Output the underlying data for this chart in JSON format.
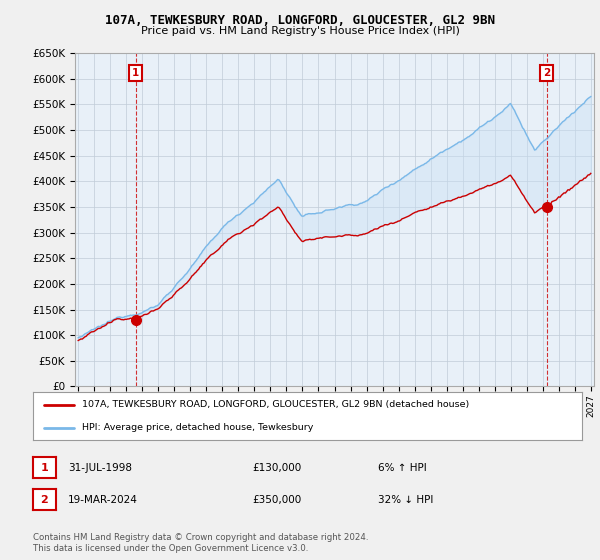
{
  "title_line1": "107A, TEWKESBURY ROAD, LONGFORD, GLOUCESTER, GL2 9BN",
  "title_line2": "Price paid vs. HM Land Registry's House Price Index (HPI)",
  "ylim": [
    0,
    650000
  ],
  "yticks": [
    0,
    50000,
    100000,
    150000,
    200000,
    250000,
    300000,
    350000,
    400000,
    450000,
    500000,
    550000,
    600000,
    650000
  ],
  "ytick_labels": [
    "£0",
    "£50K",
    "£100K",
    "£150K",
    "£200K",
    "£250K",
    "£300K",
    "£350K",
    "£400K",
    "£450K",
    "£500K",
    "£550K",
    "£600K",
    "£650K"
  ],
  "hpi_color": "#7ab8e8",
  "price_color": "#cc0000",
  "fill_color": "#c8dff5",
  "marker_color": "#cc0000",
  "annotation_box_color": "#cc0000",
  "sale1_year": 1998,
  "sale1_month": 7,
  "sale1_price": 130000,
  "sale1_date": "31-JUL-1998",
  "sale1_hpi_pct": "6% ↑ HPI",
  "sale2_year": 2024,
  "sale2_month": 3,
  "sale2_price": 350000,
  "sale2_date": "19-MAR-2024",
  "sale2_hpi_pct": "32% ↓ HPI",
  "legend_label1": "107A, TEWKESBURY ROAD, LONGFORD, GLOUCESTER, GL2 9BN (detached house)",
  "legend_label2": "HPI: Average price, detached house, Tewkesbury",
  "footnote": "Contains HM Land Registry data © Crown copyright and database right 2024.\nThis data is licensed under the Open Government Licence v3.0.",
  "bg_color": "#f0f0f0",
  "plot_bg_color": "#e8f0f8",
  "grid_color": "#c0ccd8"
}
